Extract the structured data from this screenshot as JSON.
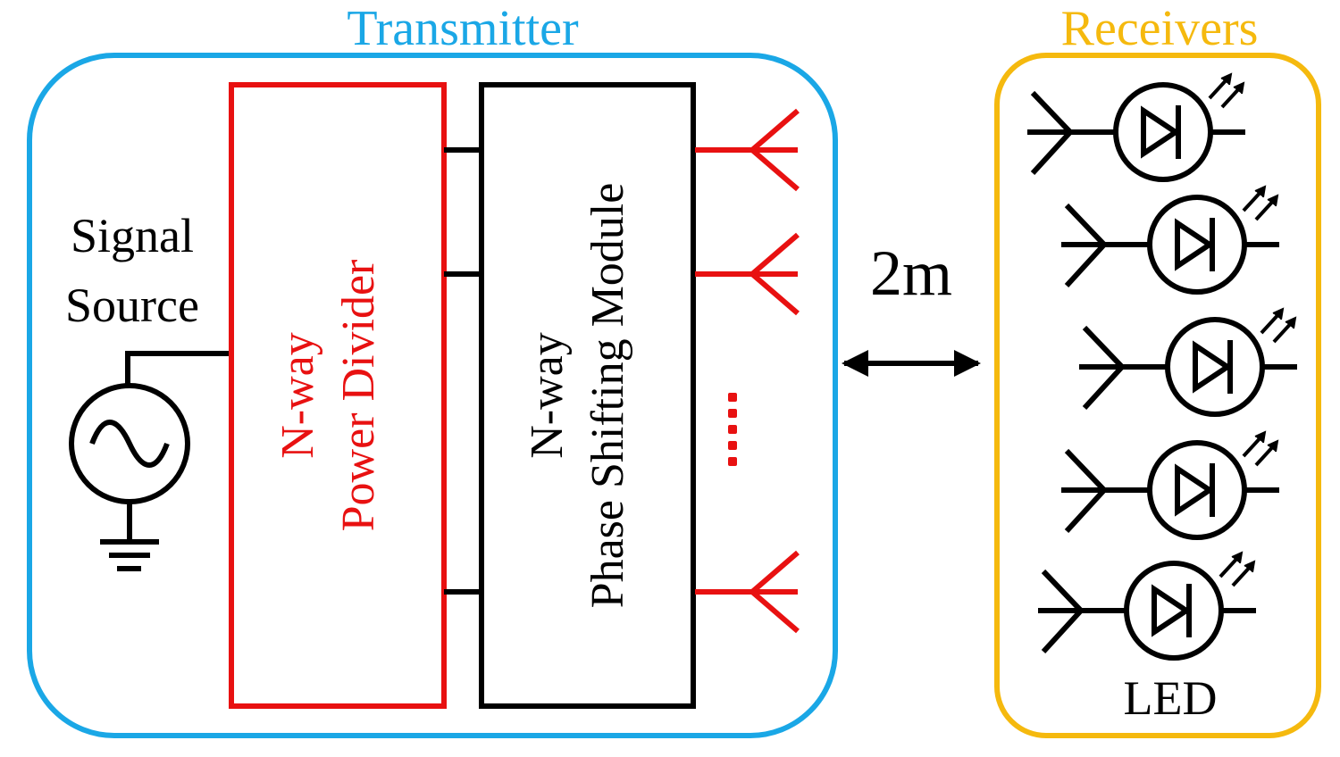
{
  "transmitter": {
    "title": "Transmitter",
    "signal_source": {
      "line1": "Signal",
      "line2": "Source"
    },
    "power_divider": {
      "line1": "N-way",
      "line2": "Power Divider"
    },
    "phase_shifter": {
      "line1": "N-way",
      "line2": "Phase Shifting Module"
    },
    "antenna_count_shown": 3
  },
  "distance": {
    "label": "2m"
  },
  "receivers": {
    "title": "Receivers",
    "led_label": "LED",
    "count": 5
  },
  "colors": {
    "transmitter_border": "#1aa7e6",
    "receivers_border": "#f5b90e",
    "red": "#e81111",
    "black": "#000000"
  }
}
